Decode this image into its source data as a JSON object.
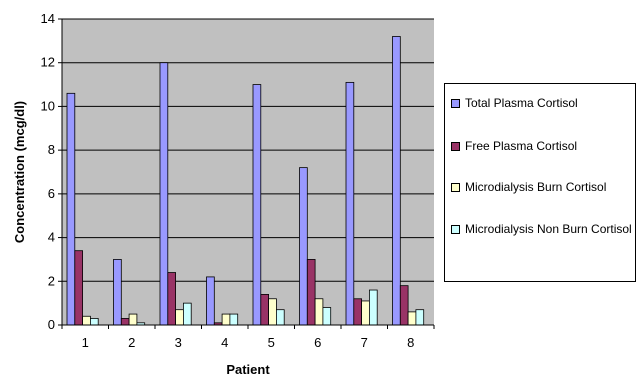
{
  "chart_data": {
    "type": "bar",
    "categories": [
      "1",
      "2",
      "3",
      "4",
      "5",
      "6",
      "7",
      "8"
    ],
    "series": [
      {
        "name": "Total Plasma Cortisol",
        "color": "#9999ff",
        "values": [
          10.6,
          3.0,
          12.0,
          2.2,
          11.0,
          7.2,
          11.1,
          13.2
        ]
      },
      {
        "name": "Free Plasma Cortisol",
        "color": "#993366",
        "values": [
          3.4,
          0.3,
          2.4,
          0.1,
          1.4,
          3.0,
          1.2,
          1.8
        ]
      },
      {
        "name": "Microdialysis Burn Cortisol",
        "color": "#ffffcc",
        "values": [
          0.4,
          0.5,
          0.7,
          0.5,
          1.2,
          1.2,
          1.1,
          0.6
        ]
      },
      {
        "name": "Microdialysis Non Burn Cortisol",
        "color": "#ccffff",
        "values": [
          0.3,
          0.1,
          1.0,
          0.5,
          0.7,
          0.8,
          1.6,
          0.7
        ]
      }
    ],
    "xlabel": "Patient",
    "ylabel": "Concentration (mcg/dl)",
    "ylim": [
      0,
      14
    ],
    "yticks": [
      "0",
      "2",
      "4",
      "6",
      "8",
      "10",
      "12",
      "14"
    ],
    "grid": true,
    "plot_background": "#c0c0c0",
    "legend_position": "right"
  }
}
